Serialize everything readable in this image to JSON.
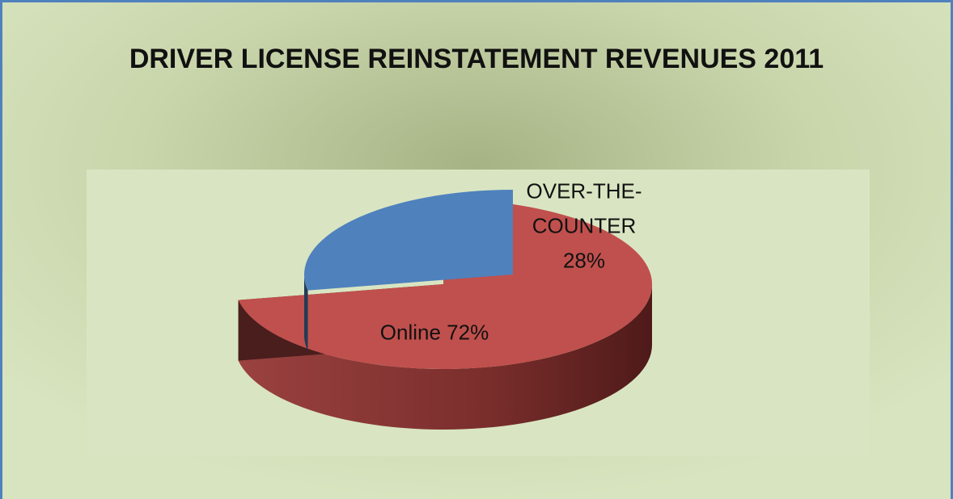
{
  "chart_data": {
    "type": "pie",
    "title": "DRIVER LICENSE REINSTATEMENT REVENUES 2011",
    "categories": [
      "Online",
      "OVER-THE-COUNTER"
    ],
    "values": [
      72,
      28
    ],
    "value_labels": [
      "72%",
      "28%"
    ],
    "colors": [
      "#c0504d",
      "#4f81bd"
    ]
  }
}
